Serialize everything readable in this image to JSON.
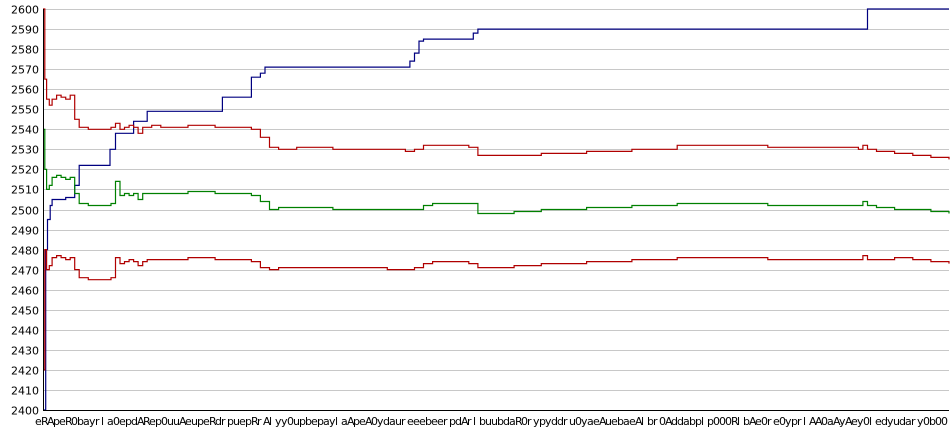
{
  "chart_data": {
    "type": "line",
    "title": "",
    "xlabel": "",
    "ylabel": "",
    "ylim": [
      2400,
      2600
    ],
    "yticks": [
      2400,
      2410,
      2420,
      2430,
      2440,
      2450,
      2460,
      2470,
      2480,
      2490,
      2500,
      2510,
      2520,
      2530,
      2540,
      2550,
      2560,
      2570,
      2580,
      2590,
      2600
    ],
    "x_tick_labels_note": "x-axis tick labels are densely overlapping and illegible",
    "grid": true,
    "legend": "none",
    "x_range": [
      0,
      100
    ],
    "series": [
      {
        "color": "#000080",
        "x": [
          0,
          0.3,
          0.5,
          0.8,
          1.0,
          1.5,
          2.0,
          2.5,
          3.0,
          3.5,
          4.0,
          5.5,
          6.0,
          7.2,
          7.4,
          8.0,
          9.5,
          10.0,
          11.5,
          12.0,
          14.0,
          16.0,
          18.0,
          19.0,
          19.8,
          21.5,
          22.0,
          23.0,
          24.0,
          24.5,
          25.5,
          26.0,
          30.0,
          35.0,
          40.0,
          40.5,
          41.0,
          41.5,
          42.0,
          42.5,
          43.0,
          47.0,
          47.5,
          48.0,
          55.0,
          65.0,
          75.0,
          85.0,
          90.5,
          91.0,
          95.0,
          100.0
        ],
        "y": [
          2400,
          2480,
          2495,
          2502,
          2505,
          2505,
          2505,
          2506,
          2506,
          2512,
          2522,
          2522,
          2522,
          2522,
          2530,
          2538,
          2538,
          2544,
          2549,
          2549,
          2549,
          2549,
          2549,
          2549,
          2556,
          2556,
          2556,
          2566,
          2568,
          2571,
          2571,
          2571,
          2571,
          2571,
          2571,
          2574,
          2578,
          2584,
          2585,
          2585,
          2585,
          2585,
          2588,
          2590,
          2590,
          2590,
          2590,
          2590,
          2590,
          2600,
          2600,
          2600
        ]
      },
      {
        "color": "#b00000",
        "x": [
          0,
          0.2,
          0.4,
          0.7,
          1.0,
          1.5,
          2.0,
          2.5,
          3.0,
          3.5,
          4.0,
          5.0,
          6.0,
          7.0,
          7.5,
          8.0,
          8.5,
          9.0,
          9.5,
          10.0,
          10.5,
          11.0,
          11.5,
          12.0,
          13.0,
          14.0,
          15.0,
          16.0,
          17.0,
          18.0,
          19.0,
          20.0,
          21.0,
          22.0,
          23.0,
          24.0,
          24.5,
          25.0,
          26.0,
          27.0,
          28.0,
          29.0,
          30.0,
          32.0,
          34.0,
          36.0,
          38.0,
          40.0,
          41.0,
          42.0,
          43.0,
          44.0,
          45.0,
          46.0,
          47.0,
          48.0,
          50.0,
          52.0,
          55.0,
          60.0,
          65.0,
          70.0,
          75.0,
          80.0,
          85.0,
          90.0,
          90.5,
          91.0,
          92.0,
          94.0,
          96.0,
          98.0,
          100.0
        ],
        "y": [
          2600,
          2565,
          2555,
          2552,
          2555,
          2557,
          2556,
          2555,
          2557,
          2545,
          2541,
          2540,
          2540,
          2540,
          2541,
          2543,
          2540,
          2541,
          2542,
          2541,
          2538,
          2541,
          2541,
          2542,
          2541,
          2541,
          2541,
          2542,
          2542,
          2542,
          2541,
          2541,
          2541,
          2541,
          2540,
          2536,
          2536,
          2531,
          2530,
          2530,
          2531,
          2531,
          2531,
          2530,
          2530,
          2530,
          2530,
          2529,
          2530,
          2532,
          2532,
          2532,
          2532,
          2532,
          2531,
          2527,
          2527,
          2527,
          2528,
          2529,
          2530,
          2532,
          2532,
          2531,
          2531,
          2530,
          2532,
          2530,
          2529,
          2528,
          2527,
          2526,
          2525
        ]
      },
      {
        "color": "#008000",
        "x": [
          0,
          0.2,
          0.4,
          0.7,
          1.0,
          1.5,
          2.0,
          2.5,
          3.0,
          3.5,
          4.0,
          5.0,
          6.0,
          7.0,
          7.5,
          8.0,
          8.5,
          9.0,
          9.5,
          10.0,
          10.5,
          11.0,
          11.5,
          12.0,
          13.0,
          14.0,
          15.0,
          16.0,
          17.0,
          18.0,
          19.0,
          20.0,
          21.0,
          22.0,
          23.0,
          24.0,
          24.5,
          25.0,
          26.0,
          27.0,
          28.0,
          29.0,
          30.0,
          32.0,
          34.0,
          36.0,
          38.0,
          40.0,
          41.0,
          42.0,
          43.0,
          44.0,
          45.0,
          46.0,
          47.0,
          48.0,
          50.0,
          52.0,
          55.0,
          60.0,
          65.0,
          70.0,
          75.0,
          80.0,
          85.0,
          90.0,
          90.5,
          91.0,
          92.0,
          94.0,
          96.0,
          98.0,
          100.0
        ],
        "y": [
          2540,
          2520,
          2510,
          2512,
          2516,
          2517,
          2516,
          2515,
          2516,
          2508,
          2503,
          2502,
          2502,
          2502,
          2503,
          2514,
          2507,
          2508,
          2507,
          2508,
          2505,
          2508,
          2508,
          2508,
          2508,
          2508,
          2508,
          2509,
          2509,
          2509,
          2508,
          2508,
          2508,
          2508,
          2507,
          2504,
          2504,
          2500,
          2501,
          2501,
          2501,
          2501,
          2501,
          2500,
          2500,
          2500,
          2500,
          2500,
          2500,
          2502,
          2503,
          2503,
          2503,
          2503,
          2503,
          2498,
          2498,
          2499,
          2500,
          2501,
          2502,
          2503,
          2503,
          2502,
          2502,
          2502,
          2504,
          2502,
          2501,
          2500,
          2500,
          2499,
          2498
        ]
      },
      {
        "color": "#b00000",
        "x": [
          0,
          0.2,
          0.4,
          0.7,
          1.0,
          1.5,
          2.0,
          2.5,
          3.0,
          3.5,
          4.0,
          5.0,
          6.0,
          7.0,
          7.5,
          8.0,
          8.5,
          9.0,
          9.5,
          10.0,
          10.5,
          11.0,
          11.5,
          12.0,
          13.0,
          14.0,
          15.0,
          16.0,
          17.0,
          18.0,
          19.0,
          20.0,
          21.0,
          22.0,
          23.0,
          24.0,
          24.5,
          25.0,
          26.0,
          27.0,
          28.0,
          29.0,
          30.0,
          32.0,
          34.0,
          36.0,
          38.0,
          40.0,
          41.0,
          42.0,
          43.0,
          44.0,
          45.0,
          46.0,
          47.0,
          48.0,
          50.0,
          52.0,
          55.0,
          60.0,
          65.0,
          70.0,
          75.0,
          80.0,
          85.0,
          90.0,
          90.5,
          91.0,
          92.0,
          94.0,
          96.0,
          98.0,
          100.0
        ],
        "y": [
          2420,
          2480,
          2470,
          2472,
          2476,
          2477,
          2476,
          2475,
          2476,
          2470,
          2466,
          2465,
          2465,
          2465,
          2466,
          2476,
          2473,
          2474,
          2475,
          2474,
          2472,
          2474,
          2475,
          2475,
          2475,
          2475,
          2475,
          2476,
          2476,
          2476,
          2475,
          2475,
          2475,
          2475,
          2474,
          2471,
          2471,
          2470,
          2471,
          2471,
          2471,
          2471,
          2471,
          2471,
          2471,
          2471,
          2470,
          2470,
          2471,
          2473,
          2474,
          2474,
          2474,
          2474,
          2473,
          2471,
          2471,
          2472,
          2473,
          2474,
          2475,
          2476,
          2476,
          2475,
          2475,
          2475,
          2477,
          2475,
          2475,
          2476,
          2475,
          2474,
          2473
        ]
      }
    ]
  }
}
